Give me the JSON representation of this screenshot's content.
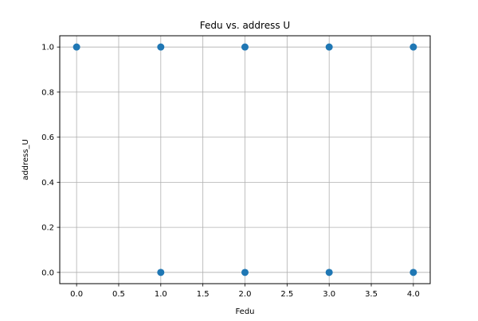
{
  "chart_data": {
    "type": "scatter",
    "title": "Fedu vs. address U",
    "xlabel": "Fedu",
    "ylabel": "address_U",
    "xlim": [
      -0.2,
      4.2
    ],
    "ylim": [
      -0.05,
      1.05
    ],
    "xticks": [
      0.0,
      0.5,
      1.0,
      1.5,
      2.0,
      2.5,
      3.0,
      3.5,
      4.0
    ],
    "xtick_labels": [
      "0.0",
      "0.5",
      "1.0",
      "1.5",
      "2.0",
      "2.5",
      "3.0",
      "3.5",
      "4.0"
    ],
    "yticks": [
      0.0,
      0.2,
      0.4,
      0.6,
      0.8,
      1.0
    ],
    "ytick_labels": [
      "0.0",
      "0.2",
      "0.4",
      "0.6",
      "0.8",
      "1.0"
    ],
    "grid": true,
    "series": [
      {
        "color": "#1f77b4",
        "points": [
          {
            "x": 0,
            "y": 1
          },
          {
            "x": 1,
            "y": 1
          },
          {
            "x": 2,
            "y": 1
          },
          {
            "x": 3,
            "y": 1
          },
          {
            "x": 4,
            "y": 1
          },
          {
            "x": 1,
            "y": 0
          },
          {
            "x": 2,
            "y": 0
          },
          {
            "x": 3,
            "y": 0
          },
          {
            "x": 4,
            "y": 0
          }
        ]
      }
    ]
  }
}
